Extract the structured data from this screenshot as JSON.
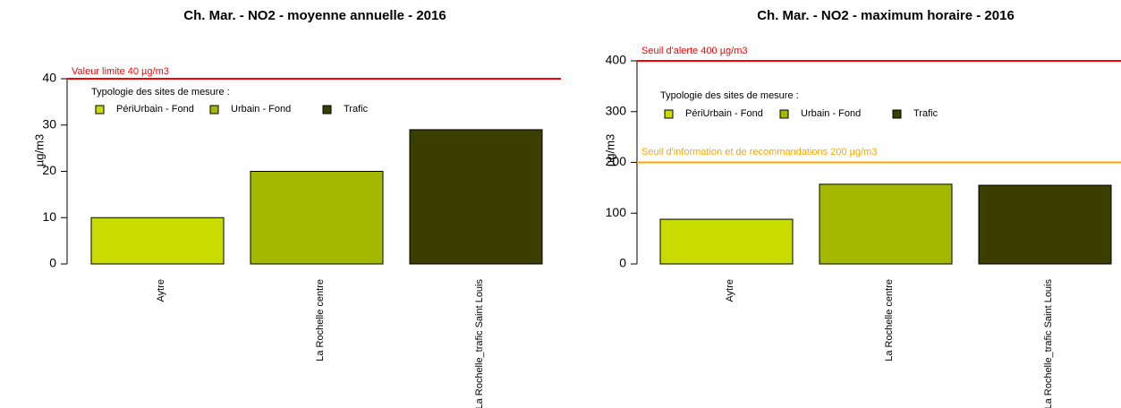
{
  "chart_data": [
    {
      "type": "bar",
      "title": "Ch. Mar. - NO2 - moyenne annuelle - 2016",
      "ylabel": "µg/m3",
      "categories": [
        "Aytre",
        "La Rochelle centre",
        "La Rochelle_trafic Saint Louis"
      ],
      "values": [
        10,
        20,
        29
      ],
      "colors": [
        "#c8dc00",
        "#a5b800",
        "#3a3f00"
      ],
      "ylim": [
        0,
        40
      ],
      "yticks": [
        0,
        10,
        20,
        30,
        40
      ],
      "reference_lines": [
        {
          "value": 40,
          "label": "Valeur limite 40 µg/m3",
          "color": "#ff0000"
        }
      ],
      "legend": {
        "title": "Typologie des sites de mesure :",
        "entries": [
          {
            "name": "PériUrbain - Fond",
            "color": "#c8dc00"
          },
          {
            "name": "Urbain - Fond",
            "color": "#a5b800"
          },
          {
            "name": "Trafic",
            "color": "#3a3f00"
          }
        ]
      }
    },
    {
      "type": "bar",
      "title": "Ch. Mar. - NO2 - maximum horaire - 2016",
      "ylabel": "µg/m3",
      "categories": [
        "Aytre",
        "La Rochelle centre",
        "La Rochelle_trafic Saint Louis"
      ],
      "values": [
        88,
        157,
        155
      ],
      "colors": [
        "#c8dc00",
        "#a5b800",
        "#3a3f00"
      ],
      "ylim": [
        0,
        400
      ],
      "yticks": [
        0,
        100,
        200,
        300,
        400
      ],
      "reference_lines": [
        {
          "value": 400,
          "label": "Seuil d'alerte 400 µg/m3",
          "color": "#ff0000"
        },
        {
          "value": 200,
          "label": "Seuil d'information et de recommandations 200 µg/m3",
          "color": "#ffa500"
        }
      ],
      "legend": {
        "title": "Typologie des sites de mesure :",
        "entries": [
          {
            "name": "PériUrbain - Fond",
            "color": "#c8dc00"
          },
          {
            "name": "Urbain - Fond",
            "color": "#a5b800"
          },
          {
            "name": "Trafic",
            "color": "#3a3f00"
          }
        ]
      }
    }
  ]
}
